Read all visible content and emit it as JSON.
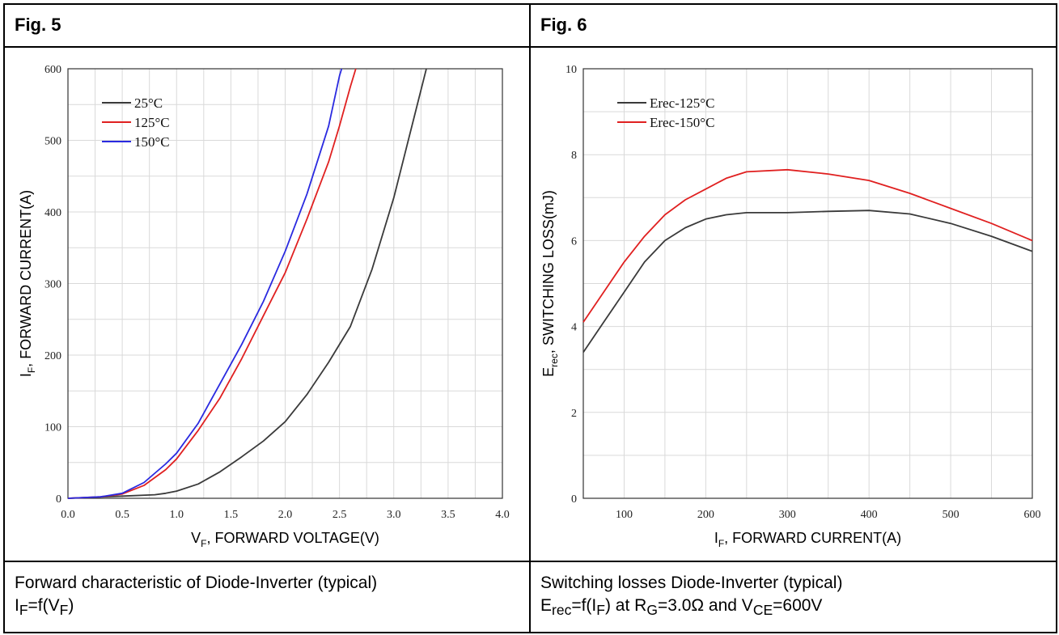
{
  "panels": [
    {
      "fig_label": "Fig. 5",
      "caption_line1": "Forward characteristic of Diode-Inverter (typical)",
      "caption_line2": {
        "main": "I",
        "sub1": "F",
        "mid": "=f(V",
        "sub2": "F",
        "end": ")"
      }
    },
    {
      "fig_label": "Fig. 6",
      "caption_line1": "Switching losses Diode-Inverter (typical)",
      "caption_line2": {
        "p1": "E",
        "s1": "rec",
        "p2": "=f(I",
        "s2": "F",
        "p3": ") at R",
        "s3": "G",
        "p4": "=3.0Ω and V",
        "s4": "CE",
        "p5": "=600V"
      }
    }
  ],
  "chart_data": [
    {
      "type": "line",
      "xlabel": {
        "main": "V",
        "sub": "F",
        "rest": ", FORWARD VOLTAGE(V)"
      },
      "ylabel": {
        "main": "I",
        "sub": "F",
        "rest": ", FORWARD CURRENT(A)"
      },
      "xlim": [
        0,
        4
      ],
      "ylim": [
        0,
        600
      ],
      "x_ticks": [
        "0.0",
        "0.5",
        "1.0",
        "1.5",
        "2.0",
        "2.5",
        "3.0",
        "3.5",
        "4.0"
      ],
      "y_ticks": [
        "0",
        "100",
        "200",
        "300",
        "400",
        "500",
        "600"
      ],
      "grid": true,
      "legend_position": "top-left",
      "series": [
        {
          "name": "25°C",
          "color": "#3a3a3a",
          "x": [
            0,
            0.5,
            0.8,
            0.9,
            1.0,
            1.2,
            1.4,
            1.6,
            1.8,
            2.0,
            2.2,
            2.4,
            2.6,
            2.8,
            3.0,
            3.2,
            3.3
          ],
          "y": [
            0,
            3,
            5,
            7,
            10,
            20,
            37,
            58,
            80,
            107,
            145,
            190,
            240,
            320,
            420,
            540,
            600
          ]
        },
        {
          "name": "125°C",
          "color": "#e02020",
          "x": [
            0,
            0.3,
            0.5,
            0.7,
            0.9,
            1.0,
            1.2,
            1.4,
            1.6,
            1.8,
            2.0,
            2.2,
            2.4,
            2.5,
            2.6,
            2.65
          ],
          "y": [
            0,
            2,
            6,
            18,
            40,
            55,
            95,
            140,
            195,
            255,
            315,
            390,
            470,
            520,
            575,
            600
          ]
        },
        {
          "name": "150°C",
          "color": "#2a2ae0",
          "x": [
            0,
            0.3,
            0.5,
            0.7,
            0.9,
            1.0,
            1.2,
            1.4,
            1.6,
            1.8,
            2.0,
            2.2,
            2.4,
            2.5,
            2.52
          ],
          "y": [
            0,
            2,
            7,
            22,
            48,
            63,
            105,
            160,
            215,
            275,
            345,
            425,
            520,
            590,
            600
          ]
        }
      ]
    },
    {
      "type": "line",
      "xlabel": {
        "main": "I",
        "sub": "F",
        "rest": ", FORWARD CURRENT(A)"
      },
      "ylabel": {
        "main": "E",
        "sub": "rec",
        "rest": ", SWITCHING LOSS(mJ)"
      },
      "xlim": [
        50,
        600
      ],
      "ylim": [
        0,
        10
      ],
      "x_ticks": [
        "100",
        "200",
        "300",
        "400",
        "500",
        "600"
      ],
      "y_ticks": [
        "0",
        "2",
        "4",
        "6",
        "8",
        "10"
      ],
      "grid": true,
      "legend_position": "top-left",
      "series": [
        {
          "name": "Erec-125°C",
          "color": "#3a3a3a",
          "x": [
            50,
            75,
            100,
            125,
            150,
            175,
            200,
            225,
            250,
            300,
            350,
            400,
            450,
            500,
            550,
            600
          ],
          "y": [
            3.4,
            4.1,
            4.8,
            5.5,
            6.0,
            6.3,
            6.5,
            6.6,
            6.65,
            6.65,
            6.68,
            6.7,
            6.62,
            6.4,
            6.1,
            5.75
          ]
        },
        {
          "name": "Erec-150°C",
          "color": "#e02020",
          "x": [
            50,
            75,
            100,
            125,
            150,
            175,
            200,
            225,
            250,
            300,
            350,
            400,
            450,
            500,
            550,
            600
          ],
          "y": [
            4.1,
            4.8,
            5.5,
            6.1,
            6.6,
            6.95,
            7.2,
            7.45,
            7.6,
            7.65,
            7.55,
            7.4,
            7.1,
            6.75,
            6.4,
            6.0
          ]
        }
      ]
    }
  ]
}
